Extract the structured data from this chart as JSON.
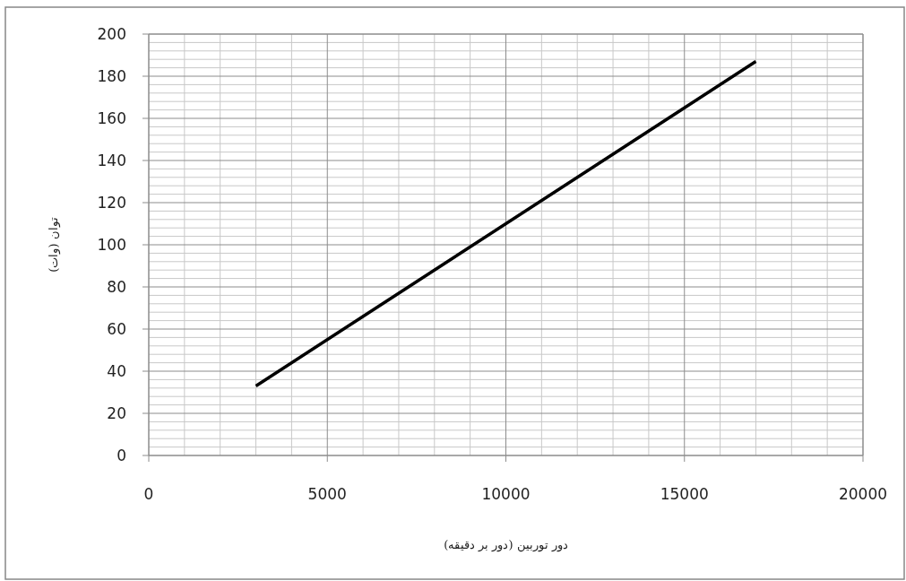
{
  "chart_data": {
    "type": "line",
    "xlabel": "دور توربین (دور بر دقیقه)",
    "ylabel": "توان (وات)",
    "x": [
      3000,
      5000,
      10000,
      15000,
      17000
    ],
    "series": [
      {
        "color": "#000000",
        "values": [
          33,
          55,
          110,
          165,
          187
        ]
      }
    ],
    "xlim": [
      0,
      20000
    ],
    "xticks": [
      0,
      5000,
      10000,
      15000,
      20000
    ],
    "ylim": [
      0,
      200
    ],
    "yticks": [
      0,
      20,
      40,
      60,
      80,
      100,
      120,
      140,
      160,
      180,
      200
    ],
    "grid": true,
    "line_style": "solid",
    "marker": "none"
  }
}
